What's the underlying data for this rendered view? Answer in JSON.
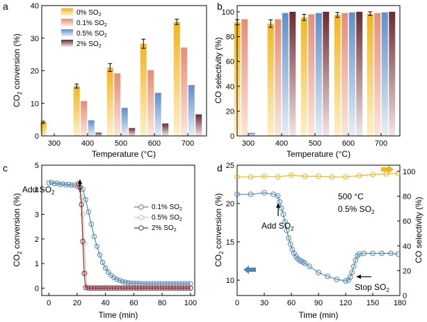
{
  "chart_data": [
    {
      "id": "a",
      "type": "bar",
      "panel_label": "a",
      "xlabel": "Temperature (°C)",
      "ylabel": "CO₂ conversion (%)",
      "ylabel_parts": [
        "CO",
        "2",
        " conversion (%)"
      ],
      "categories": [
        "300",
        "400",
        "500",
        "600",
        "700"
      ],
      "ylim": [
        0,
        40
      ],
      "yticks": [
        "0",
        "10",
        "20",
        "30",
        "40"
      ],
      "series": [
        {
          "name": "0% SO₂",
          "name_parts": [
            "0% SO",
            "2"
          ],
          "color_top": "#f2b51e",
          "color_bottom": "#fdf0c8",
          "values": [
            4.2,
            15.3,
            21.0,
            28.3,
            35.0
          ],
          "errors": [
            0.3,
            0.6,
            1.2,
            1.4,
            0.8
          ]
        },
        {
          "name": "0.1% SO₂",
          "name_parts": [
            "0.1% SO",
            "2"
          ],
          "color_top": "#e78d76",
          "color_bottom": "#fbe6da",
          "values": [
            0,
            10.7,
            19.2,
            20.2,
            27.1
          ],
          "errors": [
            0,
            0,
            0,
            0,
            0
          ]
        },
        {
          "name": "0.5% SO₂",
          "name_parts": [
            "0.5% SO",
            "2"
          ],
          "color_top": "#5f8fc9",
          "color_bottom": "#e6eef8",
          "values": [
            0,
            4.8,
            8.6,
            13.2,
            15.6
          ],
          "errors": [
            0,
            0,
            0,
            0,
            0
          ]
        },
        {
          "name": "2% SO₂",
          "name_parts": [
            "2% SO",
            "2"
          ],
          "color_top": "#6b2a32",
          "color_bottom": "#f1e6e6",
          "values": [
            0,
            1.0,
            2.4,
            3.8,
            6.6
          ],
          "errors": [
            0,
            0,
            0,
            0,
            0
          ]
        }
      ]
    },
    {
      "id": "b",
      "type": "bar",
      "panel_label": "b",
      "xlabel": "Temperature (°C)",
      "ylabel": "CO selectivity (%)",
      "categories": [
        "300",
        "400",
        "500",
        "600",
        "700"
      ],
      "ylim": [
        0,
        105
      ],
      "yticks": [
        "0",
        "20",
        "40",
        "60",
        "80",
        "100"
      ],
      "series": [
        {
          "name": "0% SO₂",
          "values": [
            91.5,
            90.5,
            95.5,
            97.5,
            98.5
          ],
          "errors": [
            2.0,
            3.0,
            2.5,
            2.0,
            1.5
          ]
        },
        {
          "name": "0.1% SO₂",
          "values": [
            94.0,
            94.0,
            98.0,
            99.0,
            99.0
          ],
          "errors": [
            0,
            0,
            0,
            0,
            0
          ]
        },
        {
          "name": "0.5% SO₂",
          "values": [
            2.5,
            99.0,
            99.0,
            99.5,
            99.5
          ],
          "errors": [
            0,
            0,
            0,
            0,
            0
          ]
        },
        {
          "name": "2% SO₂",
          "values": [
            0,
            100.0,
            100.0,
            100.0,
            100.0
          ],
          "errors": [
            0,
            0,
            0,
            0,
            0
          ]
        }
      ]
    },
    {
      "id": "c",
      "type": "scatter",
      "panel_label": "c",
      "xlabel": "Time (min)",
      "ylabel": "CO₂ conversion (%)",
      "ylabel_parts": [
        "CO",
        "2",
        " conversion (%)"
      ],
      "xlim": [
        -5,
        103
      ],
      "ylim": [
        -0.3,
        5
      ],
      "xticks": [
        "0",
        "20",
        "40",
        "60",
        "80",
        "100"
      ],
      "yticks": [
        "0",
        "1",
        "2",
        "3",
        "4",
        "5"
      ],
      "annotation": "Add SO₂",
      "annotation_parts": [
        "Add SO",
        "2"
      ],
      "series": [
        {
          "name": "0.1% SO₂",
          "name_parts": [
            "0.1% SO",
            "2"
          ],
          "color": "#4e88b8",
          "x": [
            0,
            2,
            4,
            6,
            8,
            10,
            12,
            14,
            16,
            18,
            20,
            22,
            24,
            26,
            28,
            30,
            32,
            34,
            36,
            38,
            40,
            42,
            44,
            46,
            48,
            50,
            52,
            54,
            56,
            58,
            60,
            62,
            64,
            66,
            68,
            70,
            72,
            74,
            76,
            78,
            80,
            82,
            84,
            86,
            88,
            90,
            92,
            94,
            96,
            98,
            100
          ],
          "y": [
            4.28,
            4.3,
            4.25,
            4.27,
            4.22,
            4.24,
            4.2,
            4.22,
            4.18,
            4.2,
            4.15,
            4.12,
            4.02,
            3.6,
            3.1,
            2.6,
            2.1,
            1.7,
            1.35,
            1.05,
            0.82,
            0.65,
            0.52,
            0.43,
            0.36,
            0.31,
            0.27,
            0.24,
            0.22,
            0.2,
            0.2,
            0.19,
            0.19,
            0.18,
            0.18,
            0.18,
            0.18,
            0.18,
            0.18,
            0.18,
            0.18,
            0.18,
            0.18,
            0.18,
            0.18,
            0.18,
            0.18,
            0.18,
            0.18,
            0.18,
            0.18
          ]
        },
        {
          "name": "0.5% SO₂",
          "name_parts": [
            "0.5% SO",
            "2"
          ],
          "color": "#efb79c",
          "x": [
            20,
            21,
            22,
            23,
            24,
            25,
            26,
            27,
            28,
            30,
            32,
            34,
            36,
            38,
            40,
            42,
            44,
            46,
            48,
            50,
            52,
            54,
            56,
            58,
            60,
            62,
            64,
            66,
            68,
            70,
            72,
            74,
            76,
            78,
            80,
            82,
            84,
            86,
            88,
            90,
            92,
            94,
            96,
            98,
            100
          ],
          "y": [
            4.2,
            4.15,
            4.05,
            3.7,
            3.0,
            1.8,
            0.6,
            0.05,
            0.03,
            0.02,
            0.02,
            0.02,
            0.02,
            0.02,
            0.02,
            0.02,
            0.02,
            0.02,
            0.02,
            0.02,
            0.02,
            0.02,
            0.02,
            0.02,
            0.02,
            0.02,
            0.02,
            0.02,
            0.02,
            0.02,
            0.02,
            0.02,
            0.02,
            0.02,
            0.02,
            0.02,
            0.02,
            0.02,
            0.02,
            0.02,
            0.02,
            0.02,
            0.02,
            0.02,
            0.02
          ]
        },
        {
          "name": "2% SO₂",
          "name_parts": [
            "2% SO",
            "2"
          ],
          "color": "#7b3040",
          "x": [
            21,
            22,
            23,
            24,
            25,
            26,
            28,
            30,
            32,
            34,
            36,
            38,
            40,
            42,
            44,
            46,
            48,
            50,
            52,
            54,
            56,
            58,
            60,
            62,
            64,
            66,
            68,
            70,
            72,
            74,
            76,
            78,
            80,
            82,
            84,
            86,
            88,
            90,
            92,
            94,
            96,
            98,
            100
          ],
          "y": [
            4.25,
            4.1,
            3.4,
            1.9,
            0.6,
            0.02,
            0.0,
            0.0,
            0.0,
            0.0,
            0.0,
            0.0,
            0.0,
            0.0,
            0.0,
            0.0,
            0.0,
            0.0,
            0.0,
            0.0,
            0.0,
            0.0,
            0.0,
            0.0,
            0.0,
            0.0,
            0.0,
            0.0,
            0.0,
            0.0,
            0.0,
            0.0,
            0.0,
            0.0,
            0.0,
            0.0,
            0.0,
            0.0,
            0.0,
            0.0,
            0.0,
            0.0,
            0.0
          ]
        }
      ]
    },
    {
      "id": "d",
      "type": "line",
      "panel_label": "d",
      "xlabel": "Time (min)",
      "ylabel": "CO₂ conversion (%)",
      "ylabel_parts": [
        "CO",
        "2",
        " conversion (%)"
      ],
      "ylabel_right": "CO selectivity (%)",
      "xlim": [
        0,
        180
      ],
      "ylim": [
        8,
        25
      ],
      "ylim_right": [
        0,
        105
      ],
      "xticks": [
        "0",
        "30",
        "60",
        "90",
        "120",
        "150",
        "180"
      ],
      "yticks": [
        "10",
        "15",
        "20",
        "25"
      ],
      "yticks_right": [
        "0",
        "20",
        "40",
        "60",
        "80",
        "100"
      ],
      "annotations": {
        "condition_temp": "500 °C",
        "condition_so2": "0.5% SO₂",
        "condition_so2_parts": [
          "0.5% SO",
          "2"
        ],
        "add": "Add SO₂",
        "add_parts": [
          "Add SO",
          "2"
        ],
        "stop": "Stop SO₂",
        "stop_parts": [
          "Stop SO",
          "2"
        ]
      },
      "series": [
        {
          "name": "CO₂ conversion",
          "axis": "left",
          "color": "#4e88b8",
          "x": [
            0,
            15,
            30,
            40,
            45,
            47,
            49,
            51,
            53,
            55,
            57,
            59,
            61,
            63,
            65,
            67,
            69,
            71,
            73,
            75,
            80,
            90,
            100,
            110,
            120,
            123,
            125,
            127,
            129,
            131,
            133,
            135,
            140,
            150,
            160,
            170,
            178
          ],
          "y": [
            21.2,
            21.2,
            21.4,
            21.2,
            21.0,
            20.2,
            19.4,
            18.6,
            17.6,
            16.5,
            15.5,
            14.7,
            14.0,
            13.5,
            13.1,
            12.8,
            12.6,
            12.45,
            12.35,
            12.2,
            11.8,
            11.0,
            10.5,
            10.1,
            9.9,
            10.0,
            10.4,
            11.0,
            11.8,
            12.6,
            13.2,
            13.4,
            13.5,
            13.5,
            13.5,
            13.5,
            13.4
          ]
        },
        {
          "name": "CO selectivity",
          "axis": "right",
          "color": "#f2b51e",
          "x": [
            0,
            15,
            30,
            45,
            60,
            75,
            90,
            105,
            120,
            135,
            150,
            165,
            178
          ],
          "y": [
            95.5,
            95.5,
            96.0,
            95.5,
            97.0,
            96.0,
            96.0,
            95.5,
            95.5,
            96.5,
            97.5,
            98.0,
            98.5
          ]
        }
      ]
    }
  ]
}
